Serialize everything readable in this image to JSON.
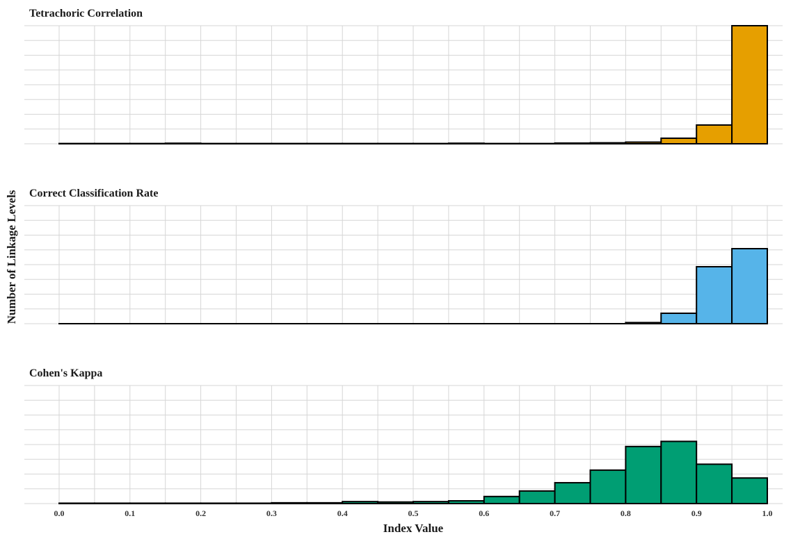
{
  "chart_data": {
    "type": "bar",
    "subtype": "histogram-facets",
    "xlabel": "Index Value",
    "ylabel": "Number of Linkage Levels",
    "xlim": [
      0.0,
      1.0
    ],
    "x_ticks": [
      "0.0",
      "0.1",
      "0.2",
      "0.3",
      "0.4",
      "0.5",
      "0.6",
      "0.7",
      "0.8",
      "0.9",
      "1.0"
    ],
    "bin_width": 0.05,
    "bin_edges": [
      0.0,
      0.05,
      0.1,
      0.15,
      0.2,
      0.25,
      0.3,
      0.35,
      0.4,
      0.45,
      0.5,
      0.55,
      0.6,
      0.65,
      0.7,
      0.75,
      0.8,
      0.85,
      0.9,
      0.95,
      1.0
    ],
    "grid": true,
    "y_tick_labels_shown": false,
    "panels": [
      {
        "title": "Tetrachoric Correlation",
        "color": "#E69F00",
        "ylim": [
          0,
          850
        ],
        "counts": [
          2,
          2,
          2,
          4,
          2,
          2,
          2,
          2,
          2,
          2,
          2,
          4,
          2,
          2,
          5,
          7,
          12,
          40,
          135,
          850
        ]
      },
      {
        "title": "Correct Classification Rate",
        "color": "#56B4E9",
        "ylim": [
          0,
          850
        ],
        "counts": [
          0,
          0,
          0,
          0,
          0,
          0,
          0,
          0,
          0,
          0,
          0,
          0,
          0,
          0,
          0,
          0,
          8,
          75,
          410,
          540
        ]
      },
      {
        "title": "Cohen's Kappa",
        "color": "#009E73",
        "ylim": [
          0,
          300
        ],
        "counts": [
          1,
          1,
          1,
          1,
          1,
          1,
          2,
          2,
          5,
          4,
          5,
          7,
          18,
          32,
          53,
          85,
          145,
          158,
          100,
          65
        ]
      }
    ]
  }
}
